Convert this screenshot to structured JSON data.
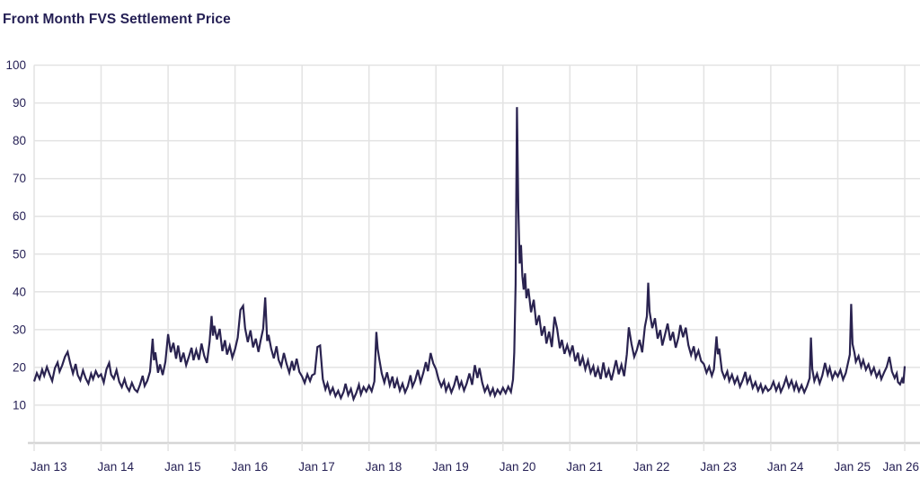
{
  "page": {
    "title": "Front Month FVS Settlement Price"
  },
  "colors": {
    "background": "#ffffff",
    "text": "#241f54",
    "line": "#2a2350",
    "grid": "#e3e3e3",
    "axis": "#d6d6d6"
  },
  "chart_data": {
    "type": "line",
    "title": "Front Month FVS Settlement Price",
    "xlabel": "",
    "ylabel": "",
    "legend": false,
    "grid": true,
    "xlim": [
      2013,
      2026
    ],
    "ylim": [
      0,
      100
    ],
    "yticks": [
      10,
      20,
      30,
      40,
      50,
      60,
      70,
      80,
      90,
      100
    ],
    "xticks": [
      {
        "t": 2013,
        "label": "Jan 13"
      },
      {
        "t": 2014,
        "label": "Jan 14"
      },
      {
        "t": 2015,
        "label": "Jan 15"
      },
      {
        "t": 2016,
        "label": "Jan 16"
      },
      {
        "t": 2017,
        "label": "Jan 17"
      },
      {
        "t": 2018,
        "label": "Jan 18"
      },
      {
        "t": 2019,
        "label": "Jan 19"
      },
      {
        "t": 2020,
        "label": "Jan 20"
      },
      {
        "t": 2021,
        "label": "Jan 21"
      },
      {
        "t": 2022,
        "label": "Jan 22"
      },
      {
        "t": 2023,
        "label": "Jan 23"
      },
      {
        "t": 2024,
        "label": "Jan 24"
      },
      {
        "t": 2025,
        "label": "Jan 25"
      },
      {
        "t": 2026,
        "label": "Jan 26"
      }
    ],
    "points": [
      [
        2013.0,
        16.3
      ],
      [
        2013.04,
        18.5
      ],
      [
        2013.08,
        17.0
      ],
      [
        2013.12,
        19.4
      ],
      [
        2013.15,
        17.8
      ],
      [
        2013.19,
        20.1
      ],
      [
        2013.23,
        18.2
      ],
      [
        2013.27,
        16.4
      ],
      [
        2013.31,
        19.8
      ],
      [
        2013.35,
        21.3
      ],
      [
        2013.38,
        18.9
      ],
      [
        2013.42,
        20.6
      ],
      [
        2013.46,
        22.8
      ],
      [
        2013.5,
        24.1
      ],
      [
        2013.54,
        21.0
      ],
      [
        2013.58,
        18.4
      ],
      [
        2013.62,
        20.9
      ],
      [
        2013.65,
        18.0
      ],
      [
        2013.69,
        16.6
      ],
      [
        2013.73,
        19.2
      ],
      [
        2013.77,
        17.1
      ],
      [
        2013.81,
        15.7
      ],
      [
        2013.85,
        18.3
      ],
      [
        2013.88,
        16.9
      ],
      [
        2013.92,
        19.0
      ],
      [
        2013.96,
        17.5
      ],
      [
        2014.0,
        18.2
      ],
      [
        2014.04,
        16.0
      ],
      [
        2014.08,
        19.5
      ],
      [
        2014.12,
        21.2
      ],
      [
        2014.15,
        18.1
      ],
      [
        2014.19,
        17.0
      ],
      [
        2014.23,
        19.3
      ],
      [
        2014.27,
        16.2
      ],
      [
        2014.31,
        14.8
      ],
      [
        2014.35,
        16.9
      ],
      [
        2014.38,
        15.0
      ],
      [
        2014.42,
        13.8
      ],
      [
        2014.46,
        15.9
      ],
      [
        2014.5,
        14.2
      ],
      [
        2014.54,
        13.5
      ],
      [
        2014.58,
        15.4
      ],
      [
        2014.62,
        17.8
      ],
      [
        2014.65,
        15.1
      ],
      [
        2014.69,
        16.5
      ],
      [
        2014.73,
        18.9
      ],
      [
        2014.77,
        27.6
      ],
      [
        2014.79,
        21.9
      ],
      [
        2014.81,
        24.0
      ],
      [
        2014.85,
        18.6
      ],
      [
        2014.88,
        20.8
      ],
      [
        2014.92,
        18.0
      ],
      [
        2014.96,
        21.5
      ],
      [
        2015.0,
        28.8
      ],
      [
        2015.04,
        24.0
      ],
      [
        2015.08,
        26.5
      ],
      [
        2015.12,
        22.3
      ],
      [
        2015.15,
        25.8
      ],
      [
        2015.19,
        21.4
      ],
      [
        2015.23,
        23.9
      ],
      [
        2015.27,
        20.6
      ],
      [
        2015.31,
        22.8
      ],
      [
        2015.35,
        25.2
      ],
      [
        2015.38,
        21.9
      ],
      [
        2015.42,
        24.6
      ],
      [
        2015.46,
        22.0
      ],
      [
        2015.5,
        26.3
      ],
      [
        2015.54,
        23.1
      ],
      [
        2015.58,
        21.2
      ],
      [
        2015.62,
        26.8
      ],
      [
        2015.65,
        33.6
      ],
      [
        2015.67,
        28.4
      ],
      [
        2015.69,
        31.0
      ],
      [
        2015.73,
        27.4
      ],
      [
        2015.77,
        30.2
      ],
      [
        2015.81,
        24.3
      ],
      [
        2015.85,
        27.2
      ],
      [
        2015.88,
        23.4
      ],
      [
        2015.92,
        25.7
      ],
      [
        2015.96,
        22.6
      ],
      [
        2016.0,
        24.8
      ],
      [
        2016.04,
        27.9
      ],
      [
        2016.08,
        35.2
      ],
      [
        2016.12,
        36.3
      ],
      [
        2016.15,
        30.4
      ],
      [
        2016.19,
        26.7
      ],
      [
        2016.23,
        29.8
      ],
      [
        2016.27,
        25.3
      ],
      [
        2016.31,
        27.6
      ],
      [
        2016.35,
        24.1
      ],
      [
        2016.38,
        26.9
      ],
      [
        2016.42,
        30.2
      ],
      [
        2016.45,
        38.5
      ],
      [
        2016.48,
        27.0
      ],
      [
        2016.5,
        28.6
      ],
      [
        2016.54,
        24.9
      ],
      [
        2016.58,
        22.4
      ],
      [
        2016.62,
        25.6
      ],
      [
        2016.65,
        22.0
      ],
      [
        2016.69,
        20.3
      ],
      [
        2016.73,
        23.8
      ],
      [
        2016.77,
        20.9
      ],
      [
        2016.81,
        18.6
      ],
      [
        2016.85,
        21.7
      ],
      [
        2016.88,
        19.2
      ],
      [
        2016.92,
        22.3
      ],
      [
        2016.96,
        18.8
      ],
      [
        2017.0,
        17.6
      ],
      [
        2017.04,
        15.9
      ],
      [
        2017.08,
        18.2
      ],
      [
        2017.12,
        16.4
      ],
      [
        2017.15,
        17.9
      ],
      [
        2017.19,
        18.3
      ],
      [
        2017.23,
        25.4
      ],
      [
        2017.27,
        25.8
      ],
      [
        2017.31,
        16.9
      ],
      [
        2017.35,
        14.2
      ],
      [
        2017.38,
        15.8
      ],
      [
        2017.42,
        13.1
      ],
      [
        2017.46,
        14.6
      ],
      [
        2017.5,
        12.4
      ],
      [
        2017.54,
        13.8
      ],
      [
        2017.58,
        11.9
      ],
      [
        2017.62,
        13.5
      ],
      [
        2017.65,
        15.7
      ],
      [
        2017.69,
        12.7
      ],
      [
        2017.73,
        14.3
      ],
      [
        2017.77,
        11.6
      ],
      [
        2017.81,
        13.2
      ],
      [
        2017.85,
        15.4
      ],
      [
        2017.88,
        12.9
      ],
      [
        2017.92,
        14.8
      ],
      [
        2017.96,
        13.6
      ],
      [
        2018.0,
        15.2
      ],
      [
        2018.04,
        13.7
      ],
      [
        2018.08,
        16.3
      ],
      [
        2018.11,
        29.4
      ],
      [
        2018.13,
        24.9
      ],
      [
        2018.15,
        22.6
      ],
      [
        2018.19,
        18.4
      ],
      [
        2018.23,
        16.0
      ],
      [
        2018.27,
        18.7
      ],
      [
        2018.31,
        15.3
      ],
      [
        2018.35,
        17.6
      ],
      [
        2018.38,
        14.5
      ],
      [
        2018.42,
        16.8
      ],
      [
        2018.46,
        13.9
      ],
      [
        2018.5,
        15.7
      ],
      [
        2018.54,
        13.4
      ],
      [
        2018.58,
        15.0
      ],
      [
        2018.62,
        17.9
      ],
      [
        2018.65,
        14.9
      ],
      [
        2018.69,
        16.6
      ],
      [
        2018.73,
        19.3
      ],
      [
        2018.77,
        16.1
      ],
      [
        2018.81,
        18.5
      ],
      [
        2018.85,
        21.4
      ],
      [
        2018.88,
        19.0
      ],
      [
        2018.92,
        23.8
      ],
      [
        2018.96,
        21.1
      ],
      [
        2019.0,
        19.6
      ],
      [
        2019.04,
        16.8
      ],
      [
        2019.08,
        14.9
      ],
      [
        2019.12,
        16.5
      ],
      [
        2019.15,
        13.8
      ],
      [
        2019.19,
        15.6
      ],
      [
        2019.23,
        13.4
      ],
      [
        2019.27,
        15.2
      ],
      [
        2019.31,
        17.8
      ],
      [
        2019.35,
        14.7
      ],
      [
        2019.38,
        16.2
      ],
      [
        2019.42,
        13.9
      ],
      [
        2019.46,
        15.8
      ],
      [
        2019.5,
        18.4
      ],
      [
        2019.54,
        15.4
      ],
      [
        2019.58,
        20.6
      ],
      [
        2019.62,
        17.2
      ],
      [
        2019.65,
        19.8
      ],
      [
        2019.69,
        16.0
      ],
      [
        2019.73,
        13.6
      ],
      [
        2019.77,
        15.1
      ],
      [
        2019.81,
        12.8
      ],
      [
        2019.85,
        14.4
      ],
      [
        2019.88,
        12.5
      ],
      [
        2019.92,
        14.1
      ],
      [
        2019.96,
        13.0
      ],
      [
        2020.0,
        14.6
      ],
      [
        2020.04,
        13.2
      ],
      [
        2020.08,
        14.9
      ],
      [
        2020.12,
        13.5
      ],
      [
        2020.15,
        16.8
      ],
      [
        2020.17,
        24.0
      ],
      [
        2020.19,
        42.0
      ],
      [
        2020.21,
        88.9
      ],
      [
        2020.23,
        62.3
      ],
      [
        2020.25,
        47.5
      ],
      [
        2020.27,
        52.4
      ],
      [
        2020.29,
        44.2
      ],
      [
        2020.31,
        40.6
      ],
      [
        2020.33,
        44.9
      ],
      [
        2020.35,
        38.3
      ],
      [
        2020.38,
        40.8
      ],
      [
        2020.42,
        34.6
      ],
      [
        2020.46,
        37.9
      ],
      [
        2020.5,
        31.2
      ],
      [
        2020.54,
        33.8
      ],
      [
        2020.58,
        28.4
      ],
      [
        2020.62,
        30.9
      ],
      [
        2020.65,
        26.3
      ],
      [
        2020.69,
        29.5
      ],
      [
        2020.73,
        25.4
      ],
      [
        2020.77,
        33.4
      ],
      [
        2020.81,
        30.2
      ],
      [
        2020.85,
        25.1
      ],
      [
        2020.88,
        27.3
      ],
      [
        2020.92,
        23.6
      ],
      [
        2020.96,
        25.9
      ],
      [
        2021.0,
        23.4
      ],
      [
        2021.04,
        25.8
      ],
      [
        2021.08,
        21.6
      ],
      [
        2021.12,
        23.9
      ],
      [
        2021.15,
        20.4
      ],
      [
        2021.19,
        22.7
      ],
      [
        2021.23,
        19.5
      ],
      [
        2021.27,
        21.8
      ],
      [
        2021.31,
        18.6
      ],
      [
        2021.35,
        20.3
      ],
      [
        2021.38,
        17.5
      ],
      [
        2021.42,
        19.8
      ],
      [
        2021.46,
        16.9
      ],
      [
        2021.5,
        21.3
      ],
      [
        2021.54,
        17.3
      ],
      [
        2021.58,
        19.4
      ],
      [
        2021.62,
        16.6
      ],
      [
        2021.65,
        18.8
      ],
      [
        2021.69,
        21.9
      ],
      [
        2021.73,
        18.2
      ],
      [
        2021.77,
        20.7
      ],
      [
        2021.81,
        17.7
      ],
      [
        2021.85,
        23.5
      ],
      [
        2021.88,
        30.6
      ],
      [
        2021.92,
        26.2
      ],
      [
        2021.96,
        22.8
      ],
      [
        2022.0,
        24.6
      ],
      [
        2022.04,
        27.3
      ],
      [
        2022.08,
        24.0
      ],
      [
        2022.12,
        30.8
      ],
      [
        2022.15,
        33.5
      ],
      [
        2022.17,
        42.4
      ],
      [
        2022.19,
        34.8
      ],
      [
        2022.23,
        30.4
      ],
      [
        2022.27,
        33.0
      ],
      [
        2022.31,
        27.6
      ],
      [
        2022.35,
        29.9
      ],
      [
        2022.38,
        25.8
      ],
      [
        2022.42,
        28.7
      ],
      [
        2022.46,
        31.6
      ],
      [
        2022.5,
        27.1
      ],
      [
        2022.54,
        29.4
      ],
      [
        2022.58,
        25.2
      ],
      [
        2022.62,
        27.9
      ],
      [
        2022.65,
        31.2
      ],
      [
        2022.69,
        28.0
      ],
      [
        2022.73,
        30.5
      ],
      [
        2022.77,
        25.9
      ],
      [
        2022.81,
        23.3
      ],
      [
        2022.85,
        25.6
      ],
      [
        2022.88,
        22.5
      ],
      [
        2022.92,
        24.4
      ],
      [
        2022.96,
        21.7
      ],
      [
        2023.0,
        20.9
      ],
      [
        2023.04,
        18.6
      ],
      [
        2023.08,
        20.2
      ],
      [
        2023.12,
        17.8
      ],
      [
        2023.15,
        19.5
      ],
      [
        2023.19,
        28.2
      ],
      [
        2023.21,
        23.5
      ],
      [
        2023.23,
        25.0
      ],
      [
        2023.27,
        19.1
      ],
      [
        2023.31,
        17.2
      ],
      [
        2023.35,
        18.9
      ],
      [
        2023.38,
        16.4
      ],
      [
        2023.42,
        18.1
      ],
      [
        2023.46,
        15.8
      ],
      [
        2023.5,
        17.4
      ],
      [
        2023.54,
        14.9
      ],
      [
        2023.58,
        16.6
      ],
      [
        2023.62,
        18.8
      ],
      [
        2023.65,
        15.9
      ],
      [
        2023.69,
        17.5
      ],
      [
        2023.73,
        14.6
      ],
      [
        2023.77,
        16.1
      ],
      [
        2023.81,
        13.9
      ],
      [
        2023.85,
        15.5
      ],
      [
        2023.88,
        13.5
      ],
      [
        2023.92,
        15.0
      ],
      [
        2023.96,
        13.8
      ],
      [
        2024.0,
        14.4
      ],
      [
        2024.04,
        16.2
      ],
      [
        2024.08,
        13.9
      ],
      [
        2024.12,
        15.6
      ],
      [
        2024.15,
        13.5
      ],
      [
        2024.19,
        15.1
      ],
      [
        2024.23,
        17.3
      ],
      [
        2024.27,
        14.8
      ],
      [
        2024.31,
        16.5
      ],
      [
        2024.35,
        14.1
      ],
      [
        2024.38,
        15.9
      ],
      [
        2024.42,
        13.7
      ],
      [
        2024.46,
        15.3
      ],
      [
        2024.5,
        13.4
      ],
      [
        2024.54,
        15.0
      ],
      [
        2024.58,
        17.2
      ],
      [
        2024.6,
        27.9
      ],
      [
        2024.62,
        19.6
      ],
      [
        2024.65,
        16.4
      ],
      [
        2024.69,
        18.3
      ],
      [
        2024.73,
        15.8
      ],
      [
        2024.77,
        17.9
      ],
      [
        2024.81,
        21.2
      ],
      [
        2024.85,
        18.1
      ],
      [
        2024.88,
        19.9
      ],
      [
        2024.92,
        17.0
      ],
      [
        2024.96,
        18.8
      ],
      [
        2025.0,
        17.6
      ],
      [
        2025.04,
        19.3
      ],
      [
        2025.08,
        16.8
      ],
      [
        2025.12,
        18.5
      ],
      [
        2025.15,
        20.9
      ],
      [
        2025.18,
        23.4
      ],
      [
        2025.2,
        36.8
      ],
      [
        2025.22,
        26.2
      ],
      [
        2025.25,
        23.8
      ],
      [
        2025.27,
        21.5
      ],
      [
        2025.31,
        23.0
      ],
      [
        2025.35,
        20.2
      ],
      [
        2025.38,
        21.9
      ],
      [
        2025.42,
        19.4
      ],
      [
        2025.46,
        20.8
      ],
      [
        2025.5,
        18.3
      ],
      [
        2025.54,
        19.9
      ],
      [
        2025.58,
        17.5
      ],
      [
        2025.62,
        19.0
      ],
      [
        2025.65,
        16.9
      ],
      [
        2025.69,
        18.6
      ],
      [
        2025.73,
        20.1
      ],
      [
        2025.77,
        22.8
      ],
      [
        2025.81,
        18.9
      ],
      [
        2025.85,
        17.2
      ],
      [
        2025.88,
        18.4
      ],
      [
        2025.9,
        16.1
      ],
      [
        2025.93,
        15.5
      ],
      [
        2025.96,
        16.9
      ],
      [
        2025.98,
        15.8
      ],
      [
        2026.0,
        20.3
      ]
    ]
  }
}
